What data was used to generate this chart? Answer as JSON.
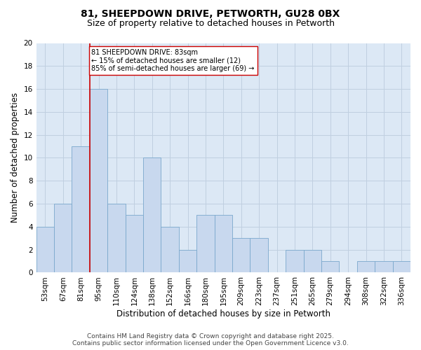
{
  "title_line1": "81, SHEEPDOWN DRIVE, PETWORTH, GU28 0BX",
  "title_line2": "Size of property relative to detached houses in Petworth",
  "xlabel": "Distribution of detached houses by size in Petworth",
  "ylabel": "Number of detached properties",
  "categories": [
    "53sqm",
    "67sqm",
    "81sqm",
    "95sqm",
    "110sqm",
    "124sqm",
    "138sqm",
    "152sqm",
    "166sqm",
    "180sqm",
    "195sqm",
    "209sqm",
    "223sqm",
    "237sqm",
    "251sqm",
    "265sqm",
    "279sqm",
    "294sqm",
    "308sqm",
    "322sqm",
    "336sqm"
  ],
  "values": [
    4,
    6,
    11,
    16,
    6,
    5,
    10,
    4,
    2,
    5,
    5,
    3,
    3,
    0,
    2,
    2,
    1,
    0,
    1,
    1,
    1
  ],
  "bar_color": "#c8d8ee",
  "bar_edge_color": "#7aa8cc",
  "grid_color": "#c0cfe0",
  "bg_color": "#dce8f5",
  "vline_color": "#cc0000",
  "vline_x_index": 2,
  "annotation_text": "81 SHEEPDOWN DRIVE: 83sqm\n← 15% of detached houses are smaller (12)\n85% of semi-detached houses are larger (69) →",
  "annotation_box_color": "#cc0000",
  "ylim": [
    0,
    20
  ],
  "yticks": [
    0,
    2,
    4,
    6,
    8,
    10,
    12,
    14,
    16,
    18,
    20
  ],
  "footer_line1": "Contains HM Land Registry data © Crown copyright and database right 2025.",
  "footer_line2": "Contains public sector information licensed under the Open Government Licence v3.0.",
  "title_fontsize": 10,
  "subtitle_fontsize": 9,
  "axis_label_fontsize": 8.5,
  "tick_fontsize": 7.5,
  "annotation_fontsize": 7,
  "footer_fontsize": 6.5
}
